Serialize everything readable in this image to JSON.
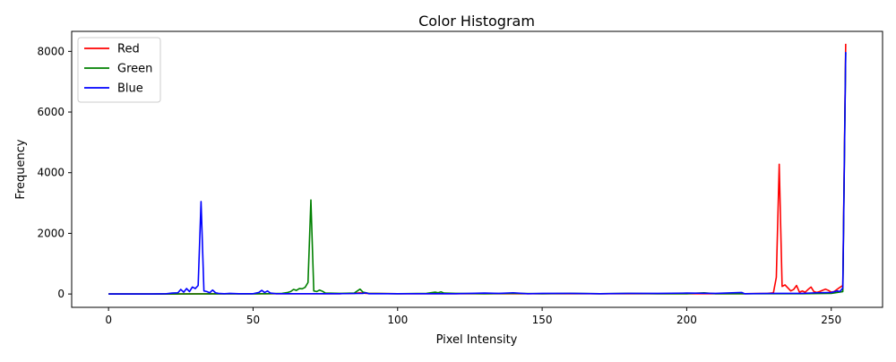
{
  "chart_data": {
    "type": "line",
    "title": "Color Histogram",
    "xlabel": "Pixel Intensity",
    "ylabel": "Frequency",
    "xlim": [
      -12.75,
      267.75
    ],
    "ylim": [
      -440,
      8660
    ],
    "xticks": [
      0,
      50,
      100,
      150,
      200,
      250
    ],
    "yticks": [
      0,
      2000,
      4000,
      6000,
      8000
    ],
    "grid": false,
    "legend_position": "top-left",
    "series": [
      {
        "name": "Red",
        "color": "#ff0000",
        "points": [
          [
            0,
            0
          ],
          [
            20,
            0
          ],
          [
            30,
            5
          ],
          [
            40,
            10
          ],
          [
            60,
            10
          ],
          [
            80,
            10
          ],
          [
            85,
            20
          ],
          [
            87,
            40
          ],
          [
            89,
            20
          ],
          [
            100,
            10
          ],
          [
            120,
            10
          ],
          [
            140,
            10
          ],
          [
            160,
            10
          ],
          [
            180,
            10
          ],
          [
            200,
            10
          ],
          [
            220,
            10
          ],
          [
            228,
            20
          ],
          [
            230,
            40
          ],
          [
            231,
            550
          ],
          [
            232,
            4280
          ],
          [
            233,
            250
          ],
          [
            234,
            300
          ],
          [
            235,
            200
          ],
          [
            236,
            100
          ],
          [
            237,
            150
          ],
          [
            238,
            280
          ],
          [
            239,
            60
          ],
          [
            240,
            100
          ],
          [
            241,
            60
          ],
          [
            242,
            150
          ],
          [
            243,
            230
          ],
          [
            244,
            80
          ],
          [
            245,
            50
          ],
          [
            246,
            80
          ],
          [
            247,
            120
          ],
          [
            248,
            160
          ],
          [
            249,
            120
          ],
          [
            250,
            60
          ],
          [
            251,
            80
          ],
          [
            252,
            150
          ],
          [
            253,
            220
          ],
          [
            254,
            280
          ],
          [
            255,
            8250
          ]
        ]
      },
      {
        "name": "Green",
        "color": "#008000",
        "points": [
          [
            0,
            0
          ],
          [
            20,
            0
          ],
          [
            40,
            5
          ],
          [
            50,
            5
          ],
          [
            55,
            10
          ],
          [
            60,
            20
          ],
          [
            62,
            50
          ],
          [
            63,
            80
          ],
          [
            64,
            150
          ],
          [
            65,
            120
          ],
          [
            66,
            180
          ],
          [
            67,
            170
          ],
          [
            68,
            220
          ],
          [
            69,
            380
          ],
          [
            70,
            3100
          ],
          [
            71,
            100
          ],
          [
            72,
            80
          ],
          [
            73,
            130
          ],
          [
            74,
            90
          ],
          [
            75,
            30
          ],
          [
            80,
            20
          ],
          [
            85,
            30
          ],
          [
            87,
            160
          ],
          [
            88,
            60
          ],
          [
            90,
            20
          ],
          [
            100,
            10
          ],
          [
            110,
            20
          ],
          [
            113,
            60
          ],
          [
            114,
            40
          ],
          [
            115,
            70
          ],
          [
            116,
            30
          ],
          [
            120,
            20
          ],
          [
            130,
            10
          ],
          [
            140,
            20
          ],
          [
            150,
            10
          ],
          [
            160,
            20
          ],
          [
            170,
            10
          ],
          [
            180,
            20
          ],
          [
            190,
            10
          ],
          [
            200,
            10
          ],
          [
            206,
            40
          ],
          [
            210,
            10
          ],
          [
            220,
            10
          ],
          [
            230,
            10
          ],
          [
            240,
            10
          ],
          [
            250,
            20
          ],
          [
            254,
            80
          ],
          [
            255,
            7950
          ]
        ]
      },
      {
        "name": "Blue",
        "color": "#0000ff",
        "points": [
          [
            0,
            0
          ],
          [
            15,
            0
          ],
          [
            20,
            10
          ],
          [
            22,
            30
          ],
          [
            24,
            40
          ],
          [
            25,
            150
          ],
          [
            26,
            60
          ],
          [
            27,
            180
          ],
          [
            28,
            80
          ],
          [
            29,
            230
          ],
          [
            30,
            180
          ],
          [
            31,
            280
          ],
          [
            32,
            3050
          ],
          [
            33,
            100
          ],
          [
            34,
            80
          ],
          [
            35,
            40
          ],
          [
            36,
            130
          ],
          [
            37,
            40
          ],
          [
            38,
            20
          ],
          [
            40,
            10
          ],
          [
            42,
            20
          ],
          [
            45,
            10
          ],
          [
            50,
            10
          ],
          [
            52,
            50
          ],
          [
            53,
            120
          ],
          [
            54,
            50
          ],
          [
            55,
            100
          ],
          [
            56,
            30
          ],
          [
            58,
            10
          ],
          [
            60,
            10
          ],
          [
            70,
            10
          ],
          [
            80,
            10
          ],
          [
            88,
            20
          ],
          [
            89,
            40
          ],
          [
            90,
            10
          ],
          [
            100,
            10
          ],
          [
            110,
            10
          ],
          [
            120,
            10
          ],
          [
            125,
            20
          ],
          [
            130,
            30
          ],
          [
            135,
            20
          ],
          [
            140,
            40
          ],
          [
            145,
            10
          ],
          [
            150,
            20
          ],
          [
            160,
            20
          ],
          [
            170,
            10
          ],
          [
            180,
            20
          ],
          [
            190,
            20
          ],
          [
            200,
            30
          ],
          [
            210,
            20
          ],
          [
            219,
            50
          ],
          [
            220,
            10
          ],
          [
            230,
            20
          ],
          [
            240,
            20
          ],
          [
            245,
            40
          ],
          [
            250,
            50
          ],
          [
            252,
            100
          ],
          [
            253,
            80
          ],
          [
            254,
            200
          ],
          [
            255,
            7980
          ]
        ]
      }
    ]
  }
}
